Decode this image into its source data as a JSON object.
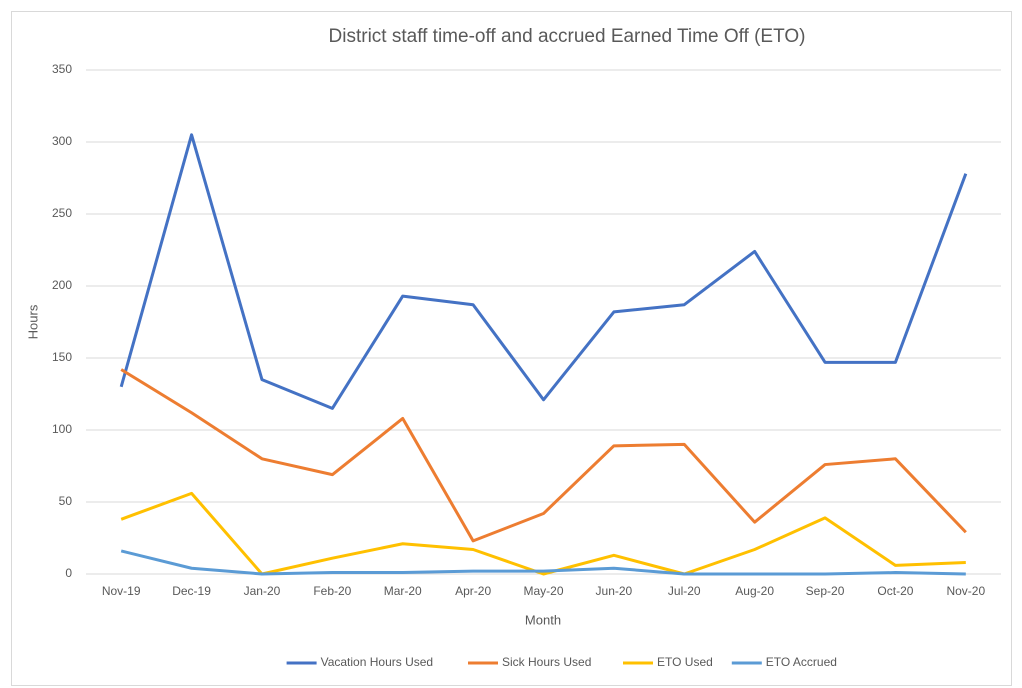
{
  "chart_data": {
    "type": "line",
    "title": "District staff time-off and accrued Earned Time Off (ETO)",
    "x_label": "Month",
    "y_label": "Hours",
    "categories": [
      "Nov-19",
      "Dec-19",
      "Jan-20",
      "Feb-20",
      "Mar-20",
      "Apr-20",
      "May-20",
      "Jun-20",
      "Jul-20",
      "Aug-20",
      "Sep-20",
      "Oct-20",
      "Nov-20"
    ],
    "series": [
      {
        "name": "Vacation Hours Used",
        "color": "#4472c4",
        "values": [
          130,
          305,
          135,
          115,
          193,
          187,
          121,
          182,
          187,
          224,
          147,
          147,
          278
        ]
      },
      {
        "name": "Sick Hours Used",
        "color": "#ed7d31",
        "values": [
          142,
          112,
          80,
          69,
          108,
          23,
          42,
          89,
          90,
          36,
          76,
          80,
          29
        ]
      },
      {
        "name": "ETO Used",
        "color": "#ffc000",
        "values": [
          38,
          56,
          0,
          11,
          21,
          17,
          0,
          13,
          0,
          17,
          39,
          6,
          8
        ]
      },
      {
        "name": "ETO Accrued",
        "color": "#5b9bd5",
        "values": [
          16,
          4,
          0,
          1,
          1,
          2,
          2,
          4,
          0,
          0,
          0,
          1,
          0
        ]
      }
    ],
    "ylim": [
      0,
      350
    ],
    "yticks": [
      0,
      50,
      100,
      150,
      200,
      250,
      300,
      350
    ],
    "grid": true,
    "legend": "bottom"
  }
}
